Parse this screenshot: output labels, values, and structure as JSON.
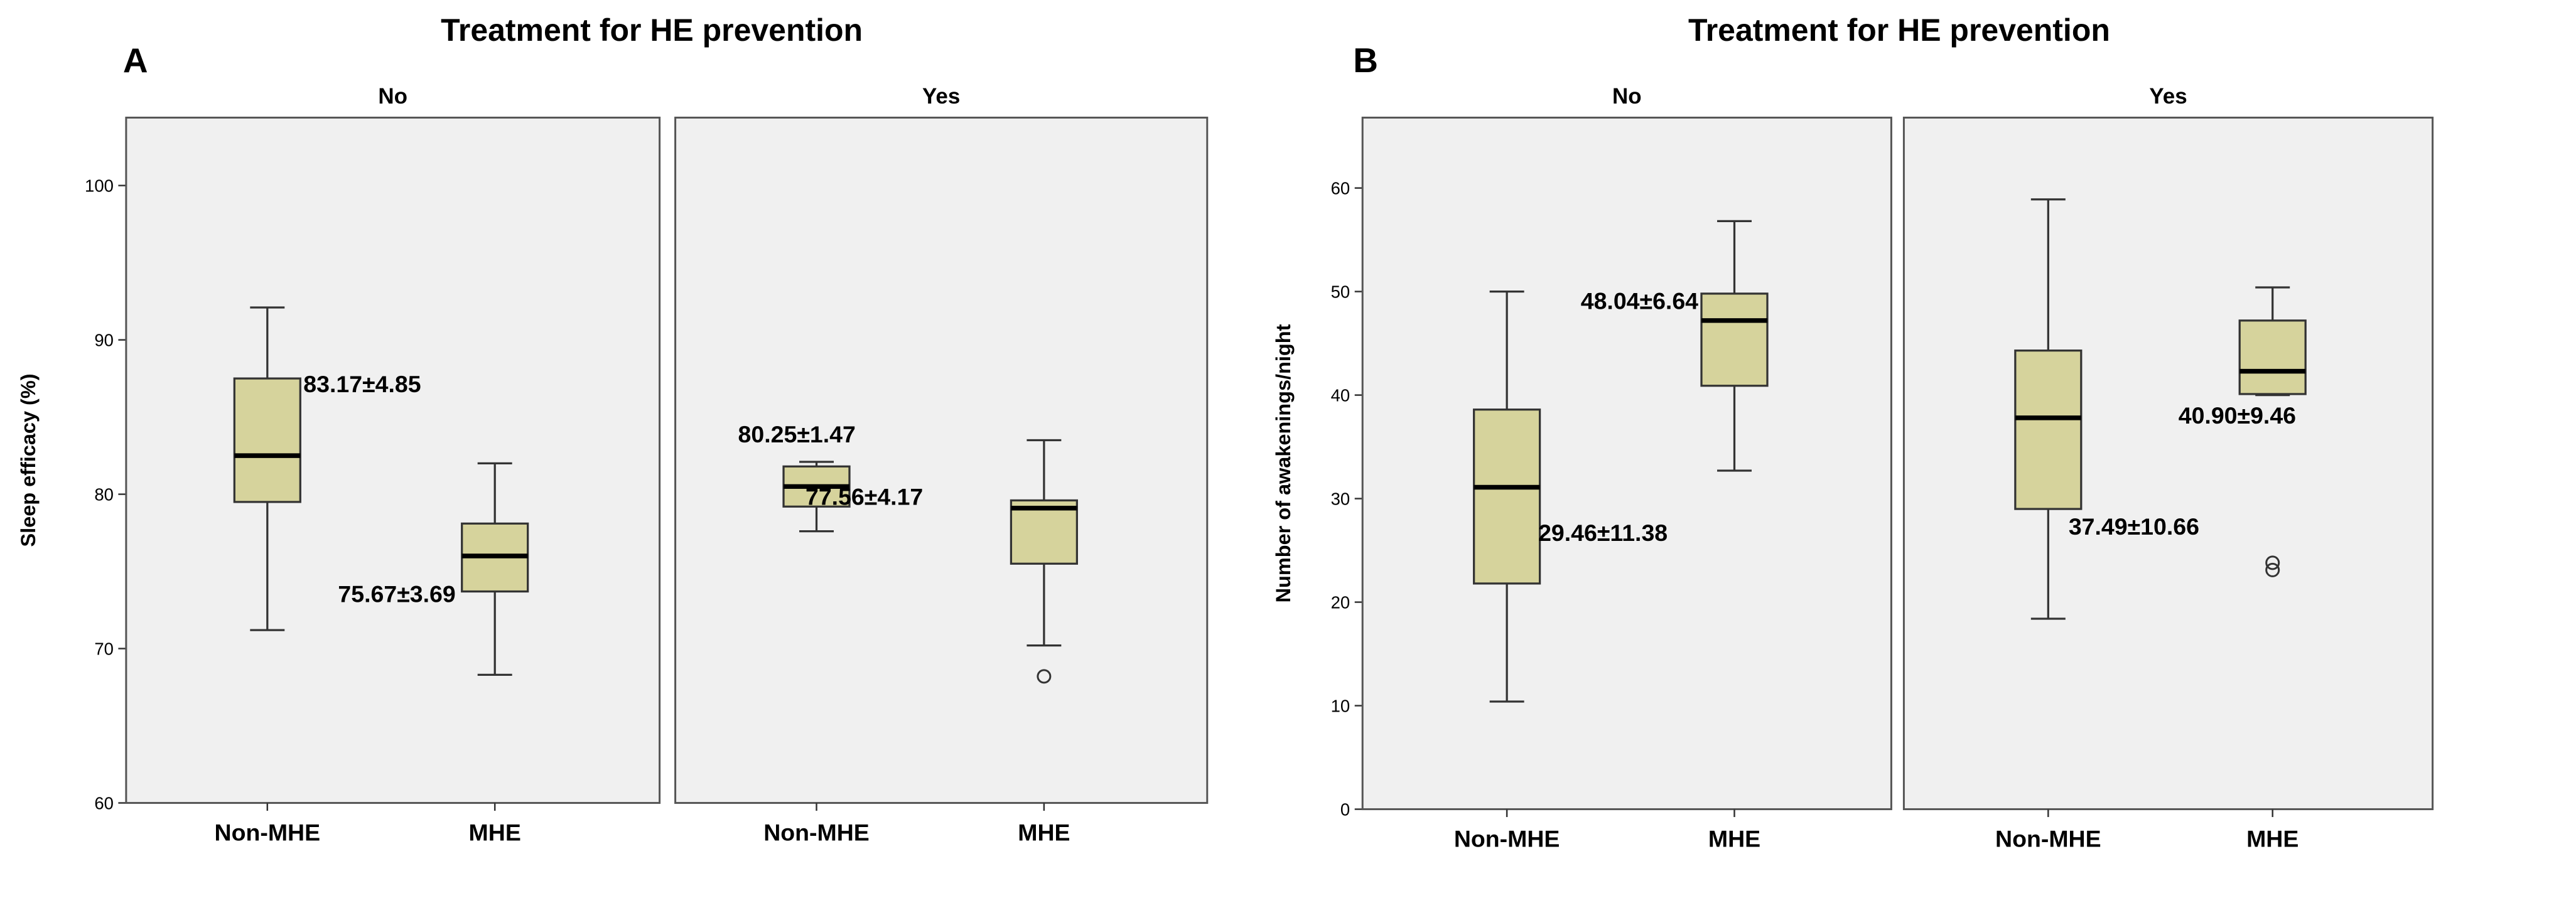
{
  "chart_data": [
    {
      "type": "box",
      "panel": "A",
      "title": "Treatment for HE prevention",
      "y_label": "Sleep efficacy (%)",
      "ylim": [
        60,
        104.4
      ],
      "yticks": [
        60,
        70,
        80,
        90,
        100
      ],
      "box_color": "#d6d39c",
      "facets": [
        {
          "name": "No",
          "categories": [
            "Non-MHE",
            "MHE"
          ],
          "boxes": [
            {
              "whisker_low": 71.2,
              "q1": 79.5,
              "median": 82.5,
              "q3": 87.5,
              "whisker_high": 92.1,
              "label": "83.17±4.85"
            },
            {
              "whisker_low": 68.3,
              "q1": 73.7,
              "median": 76.0,
              "q3": 78.1,
              "whisker_high": 82.0,
              "label": "75.67±3.69"
            }
          ]
        },
        {
          "name": "Yes",
          "categories": [
            "Non-MHE",
            "MHE"
          ],
          "boxes": [
            {
              "whisker_low": 77.6,
              "q1": 79.2,
              "median": 80.5,
              "q3": 81.8,
              "whisker_high": 82.1,
              "label": "80.25±1.47"
            },
            {
              "whisker_low": 70.2,
              "q1": 75.5,
              "median": 79.1,
              "q3": 79.6,
              "whisker_high": 83.5,
              "outliers": [
                68.2
              ],
              "label": "77.56±4.17"
            }
          ]
        }
      ]
    },
    {
      "type": "box",
      "panel": "B",
      "title": "Treatment for HE prevention",
      "y_label": "Number of awakenings/night",
      "ylim": [
        0,
        66.8
      ],
      "yticks": [
        0,
        10,
        20,
        30,
        40,
        50,
        60
      ],
      "box_color": "#d6d39c",
      "facets": [
        {
          "name": "No",
          "categories": [
            "Non-MHE",
            "MHE"
          ],
          "boxes": [
            {
              "whisker_low": 10.4,
              "q1": 21.8,
              "median": 31.1,
              "q3": 38.6,
              "whisker_high": 50.0,
              "label": "29.46±11.38"
            },
            {
              "whisker_low": 32.7,
              "q1": 40.9,
              "median": 47.2,
              "q3": 49.8,
              "whisker_high": 56.8,
              "label": "48.04±6.64"
            }
          ]
        },
        {
          "name": "Yes",
          "categories": [
            "Non-MHE",
            "MHE"
          ],
          "boxes": [
            {
              "whisker_low": 18.4,
              "q1": 29.0,
              "median": 37.8,
              "q3": 44.3,
              "whisker_high": 58.9,
              "label": "37.49±10.66"
            },
            {
              "whisker_low": 40.0,
              "q1": 40.1,
              "median": 42.3,
              "q3": 47.2,
              "whisker_high": 50.4,
              "outliers": [
                23.8,
                23.1
              ],
              "label": "40.90±9.46"
            }
          ]
        }
      ]
    }
  ]
}
